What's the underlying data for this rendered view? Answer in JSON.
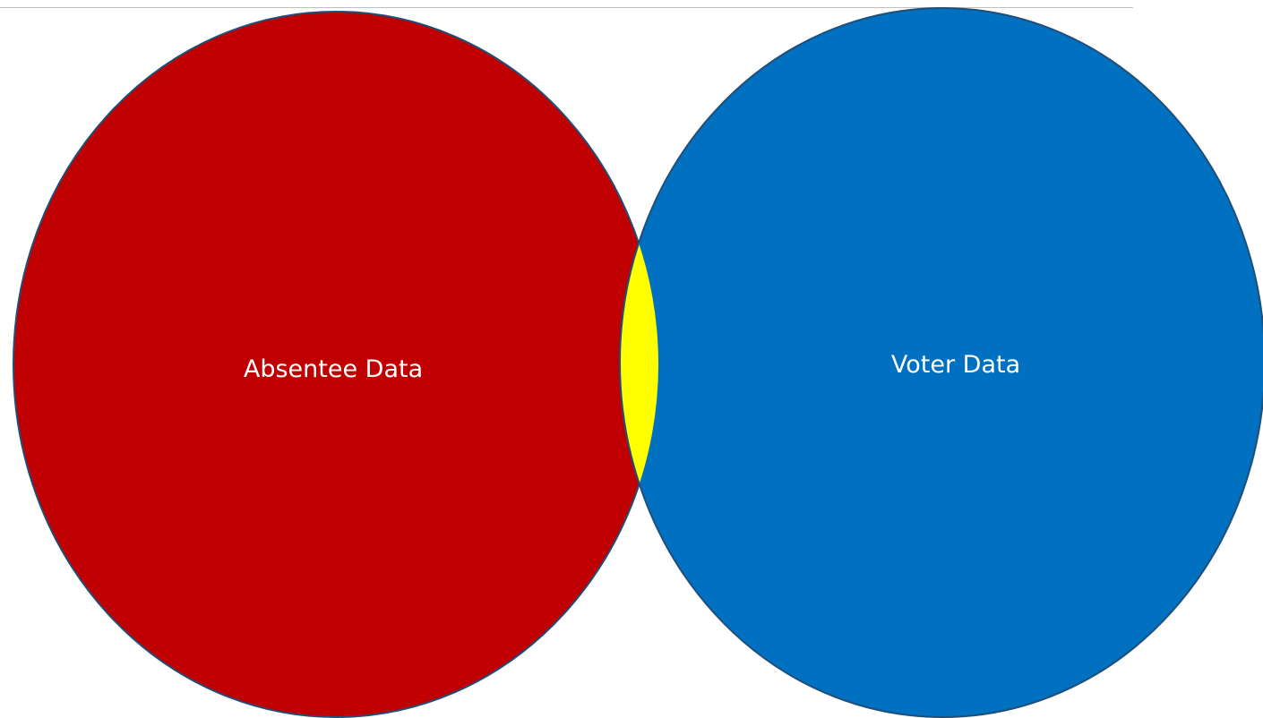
{
  "diagram": {
    "type": "venn",
    "sets": [
      {
        "id": "left",
        "label": "Absentee Data",
        "color": "#C00000"
      },
      {
        "id": "right",
        "label": "Voter Data",
        "color": "#0070C0"
      }
    ],
    "intersection": {
      "color": "#FFFF00",
      "label": ""
    },
    "outline_color": "#1F4E79",
    "rule_color": "#BFBFBF"
  }
}
